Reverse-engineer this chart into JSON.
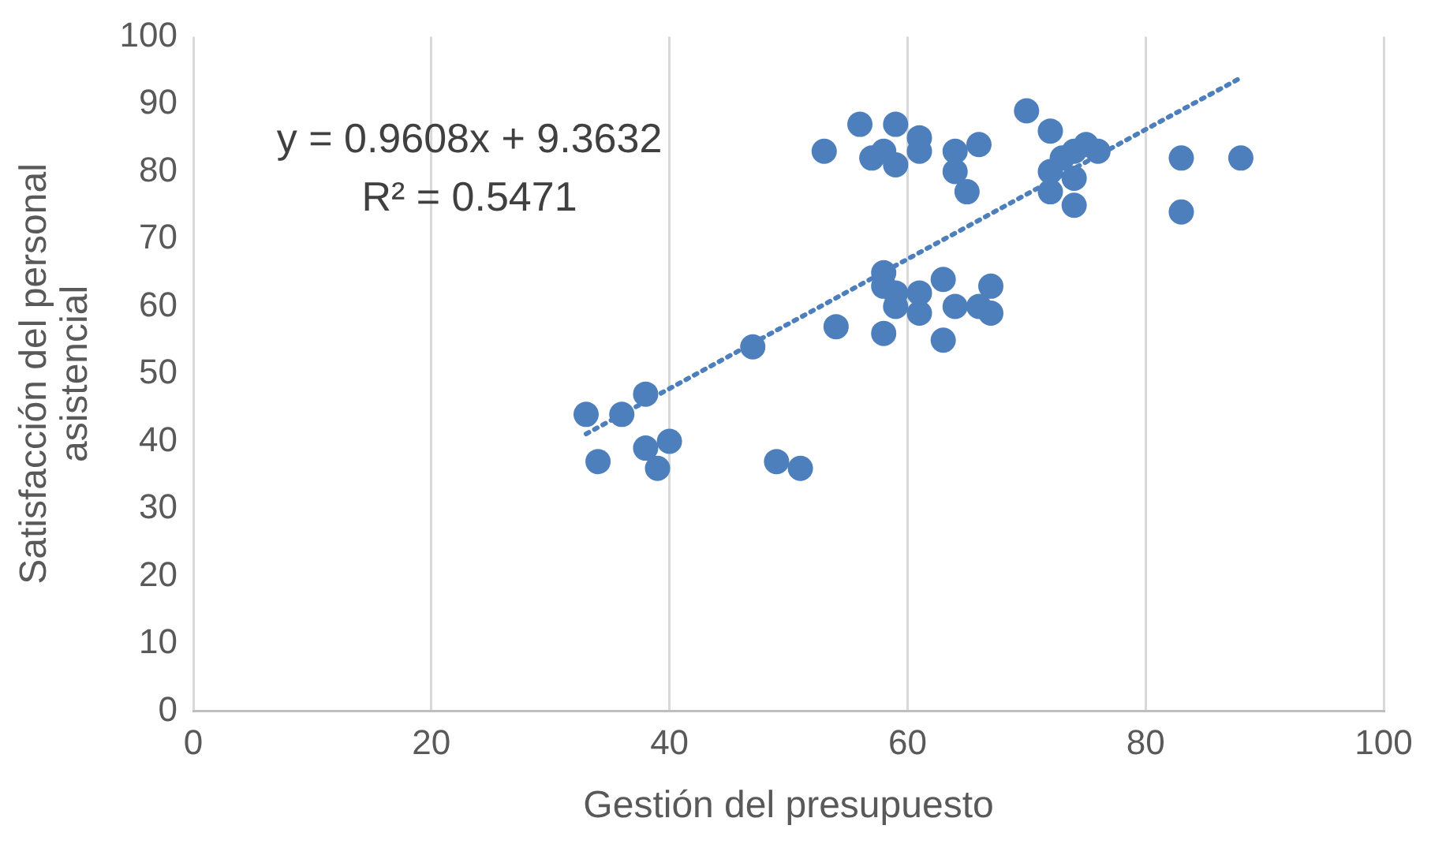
{
  "chart_data": {
    "type": "scatter",
    "xlabel": "Gestión del presupuesto",
    "ylabel": "Satisfacción del personal asistencial",
    "annotations": [
      "y = 0.9608x + 9.3632",
      "R² = 0.5471"
    ],
    "xlim": [
      0,
      100
    ],
    "xticks": [
      0,
      20,
      40,
      60,
      80,
      100
    ],
    "ylim": [
      0,
      100
    ],
    "yticks": [
      0,
      10,
      20,
      30,
      40,
      50,
      60,
      70,
      80,
      90,
      100
    ],
    "grid": "x",
    "legend": false,
    "marker": "circle",
    "series": [
      {
        "color": "#4e7fbd",
        "x": [
          53,
          56,
          57,
          58,
          59,
          59,
          61,
          61,
          64,
          64,
          65,
          66,
          70,
          72,
          72,
          72,
          73,
          74,
          74,
          74,
          75,
          76,
          83,
          83,
          88,
          47,
          54,
          58,
          58,
          58,
          59,
          59,
          61,
          61,
          63,
          63,
          64,
          66,
          67,
          67,
          33,
          34,
          36,
          38,
          38,
          39,
          40,
          49,
          51
        ],
        "values": [
          83,
          87,
          82,
          83,
          81,
          87,
          85,
          83,
          83,
          80,
          77,
          84,
          89,
          86,
          80,
          77,
          82,
          83,
          79,
          75,
          84,
          83,
          82,
          74,
          82,
          54,
          57,
          65,
          63,
          56,
          60,
          62,
          62,
          59,
          64,
          55,
          60,
          60,
          63,
          59,
          44,
          37,
          44,
          47,
          39,
          36,
          40,
          37,
          36
        ]
      },
      {
        "type": "line",
        "color": "#4e7fbd",
        "marker": "none",
        "line_style": "dotted",
        "x": [
          33,
          88
        ],
        "values": [
          41.1,
          93.9
        ]
      }
    ]
  }
}
